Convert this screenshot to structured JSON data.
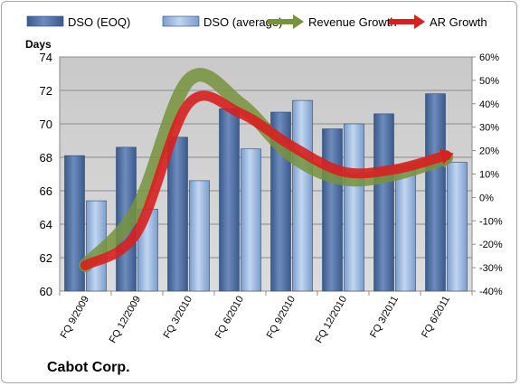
{
  "chart_data": {
    "type": "bar",
    "title": "",
    "company": "Cabot Corp.",
    "ylabel": "Days",
    "ylim": [
      60,
      74
    ],
    "yticks": [
      60,
      62,
      64,
      66,
      68,
      70,
      72,
      74
    ],
    "y2lim": [
      -40,
      60
    ],
    "y2ticks": [
      "-40%",
      "-30%",
      "-20%",
      "-10%",
      "0%",
      "10%",
      "20%",
      "30%",
      "40%",
      "50%",
      "60%"
    ],
    "categories": [
      "FQ 9/2009",
      "FQ 12/2009",
      "FQ 3/2010",
      "FQ 6/2010",
      "FQ 9/2010",
      "FQ 12/2010",
      "FQ 3/2011",
      "FQ 6/2011"
    ],
    "legend_position": "top",
    "grid": true,
    "series": [
      {
        "name": "DSO (EOQ)",
        "type": "bar",
        "axis": "left",
        "color": "#4f6f9f",
        "values": [
          68.1,
          68.6,
          69.2,
          70.9,
          70.7,
          69.7,
          70.6,
          71.8
        ]
      },
      {
        "name": "DSO (average)",
        "type": "bar",
        "axis": "left",
        "color": "#9ab8e2",
        "values": [
          65.4,
          64.9,
          66.6,
          68.5,
          71.4,
          70.0,
          67.5,
          67.7
        ]
      },
      {
        "name": "Revenue Growth",
        "type": "line",
        "axis": "right",
        "color": "#77933c",
        "values": [
          -29,
          -5,
          50,
          40,
          18,
          8,
          10,
          17
        ]
      },
      {
        "name": "AR Growth",
        "type": "line",
        "axis": "right",
        "color": "#d7201f",
        "values": [
          -29,
          -15,
          40,
          36,
          22,
          11,
          12,
          18
        ]
      }
    ]
  }
}
